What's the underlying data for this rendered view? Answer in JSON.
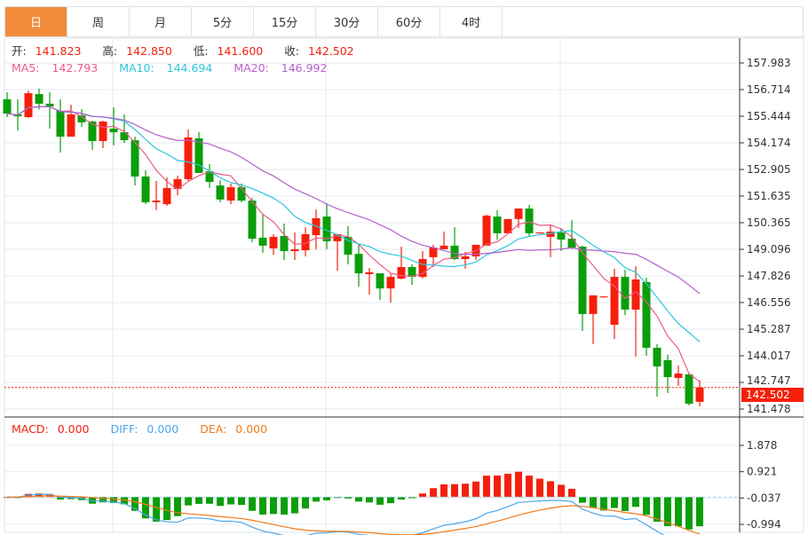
{
  "tabs": [
    {
      "label": "日",
      "active": true
    },
    {
      "label": "周"
    },
    {
      "label": "月"
    },
    {
      "label": "5分"
    },
    {
      "label": "15分"
    },
    {
      "label": "30分"
    },
    {
      "label": "60分"
    },
    {
      "label": "4时"
    }
  ],
  "ohlc_legend": {
    "open_label": "开:",
    "open": "141.823",
    "high_label": "高:",
    "high": "142.850",
    "low_label": "低:",
    "low": "141.600",
    "close_label": "收:",
    "close": "142.502"
  },
  "ma_legend": {
    "ma5_label": "MA5:",
    "ma5": "142.793",
    "ma10_label": "MA10:",
    "ma10": "144.694",
    "ma20_label": "MA20:",
    "ma20": "146.992"
  },
  "macd_legend": {
    "macd_label": "MACD:",
    "macd": "0.000",
    "diff_label": "DIFF:",
    "diff": "0.000",
    "dea_label": "DEA:",
    "dea": "0.000"
  },
  "current_price": "142.502",
  "colors": {
    "up": "#f5200b",
    "down": "#0a9e0a",
    "ma5": "#ec5a86",
    "ma10": "#2cc5dc",
    "ma20": "#b45fcc",
    "diff": "#4ca6ea",
    "dea": "#f07a1a",
    "accent": "#f28c3c"
  },
  "chart_data": {
    "type": "candlestick",
    "price_axis_ticks": [
      "157.983",
      "156.714",
      "155.444",
      "154.174",
      "152.905",
      "151.635",
      "150.365",
      "149.096",
      "147.826",
      "146.556",
      "145.287",
      "144.017",
      "142.747",
      "141.478"
    ],
    "price_range": [
      141.478,
      157.983
    ],
    "macd_axis_ticks": [
      "1.878",
      "0.921",
      "-0.037",
      "-0.994"
    ],
    "macd_range": [
      -0.994,
      1.878
    ],
    "ohlc": [
      [
        156.25,
        156.59,
        155.4,
        155.57
      ],
      [
        155.53,
        156.25,
        154.77,
        155.44
      ],
      [
        155.4,
        156.67,
        155.36,
        156.54
      ],
      [
        156.5,
        156.76,
        155.78,
        156.04
      ],
      [
        156.04,
        156.59,
        154.85,
        155.91
      ],
      [
        155.7,
        156.25,
        153.71,
        154.47
      ],
      [
        154.47,
        155.99,
        154.47,
        155.53
      ],
      [
        155.49,
        155.78,
        154.94,
        155.15
      ],
      [
        155.19,
        155.23,
        153.84,
        154.26
      ],
      [
        154.26,
        155.23,
        153.92,
        155.19
      ],
      [
        154.85,
        155.87,
        154.05,
        154.68
      ],
      [
        154.68,
        155.53,
        154.17,
        154.3
      ],
      [
        154.3,
        154.47,
        152.14,
        152.57
      ],
      [
        152.57,
        152.86,
        151.25,
        151.34
      ],
      [
        151.34,
        152.36,
        150.96,
        151.42
      ],
      [
        151.25,
        152.52,
        151.17,
        152.02
      ],
      [
        151.97,
        152.61,
        151.68,
        152.44
      ],
      [
        152.44,
        154.81,
        152.36,
        154.43
      ],
      [
        154.39,
        154.68,
        152.74,
        152.74
      ],
      [
        152.82,
        153.16,
        152.02,
        152.31
      ],
      [
        152.14,
        152.4,
        151.34,
        151.47
      ],
      [
        151.42,
        152.23,
        151.25,
        152.06
      ],
      [
        152.06,
        152.23,
        151.34,
        151.42
      ],
      [
        151.42,
        151.55,
        149.43,
        149.6
      ],
      [
        149.65,
        150.79,
        148.93,
        149.27
      ],
      [
        149.14,
        149.82,
        148.84,
        149.69
      ],
      [
        149.73,
        150.32,
        148.59,
        149.01
      ],
      [
        149.01,
        149.9,
        148.59,
        149.1
      ],
      [
        149.05,
        150.15,
        148.76,
        149.82
      ],
      [
        149.77,
        151.0,
        149.1,
        150.58
      ],
      [
        150.66,
        151.3,
        149.1,
        149.48
      ],
      [
        149.48,
        149.82,
        148.08,
        149.82
      ],
      [
        149.69,
        150.2,
        148.38,
        148.84
      ],
      [
        148.88,
        149.35,
        147.32,
        147.95
      ],
      [
        147.91,
        148.21,
        146.94,
        148.0
      ],
      [
        147.95,
        147.95,
        146.68,
        147.23
      ],
      [
        147.23,
        147.95,
        146.56,
        147.78
      ],
      [
        147.7,
        149.22,
        147.66,
        148.25
      ],
      [
        148.25,
        148.38,
        147.4,
        147.78
      ],
      [
        147.78,
        149.01,
        147.7,
        148.63
      ],
      [
        148.72,
        149.31,
        148.25,
        149.18
      ],
      [
        149.1,
        149.94,
        149.1,
        149.27
      ],
      [
        149.27,
        150.15,
        148.59,
        148.63
      ],
      [
        148.63,
        148.97,
        148.17,
        148.76
      ],
      [
        148.76,
        149.31,
        148.59,
        149.31
      ],
      [
        149.27,
        150.75,
        149.27,
        150.7
      ],
      [
        150.66,
        150.96,
        149.56,
        149.86
      ],
      [
        149.86,
        150.54,
        149.86,
        150.54
      ],
      [
        150.54,
        151.04,
        150.11,
        151.04
      ],
      [
        151.04,
        151.21,
        149.69,
        149.86
      ],
      [
        149.86,
        149.9,
        149.86,
        149.9
      ],
      [
        149.69,
        150.24,
        148.72,
        149.94
      ],
      [
        149.9,
        150.11,
        149.01,
        149.56
      ],
      [
        149.6,
        150.49,
        149.1,
        149.18
      ],
      [
        149.22,
        149.27,
        145.2,
        146.01
      ],
      [
        146.01,
        146.9,
        144.57,
        146.9
      ],
      [
        146.81,
        146.85,
        146.81,
        146.85
      ],
      [
        145.5,
        148.17,
        144.82,
        147.78
      ],
      [
        147.78,
        148.12,
        145.96,
        146.22
      ],
      [
        146.22,
        148.29,
        143.98,
        147.66
      ],
      [
        147.53,
        147.74,
        144.02,
        144.4
      ],
      [
        144.4,
        144.57,
        142.07,
        143.51
      ],
      [
        143.81,
        144.06,
        142.24,
        143.0
      ],
      [
        142.96,
        143.55,
        142.58,
        143.17
      ],
      [
        143.13,
        143.21,
        141.65,
        141.73
      ],
      [
        141.823,
        142.85,
        141.6,
        142.502
      ]
    ],
    "indicators": [
      "MA5",
      "MA10",
      "MA20",
      "MACD(DIFF,DEA,histogram)"
    ]
  }
}
